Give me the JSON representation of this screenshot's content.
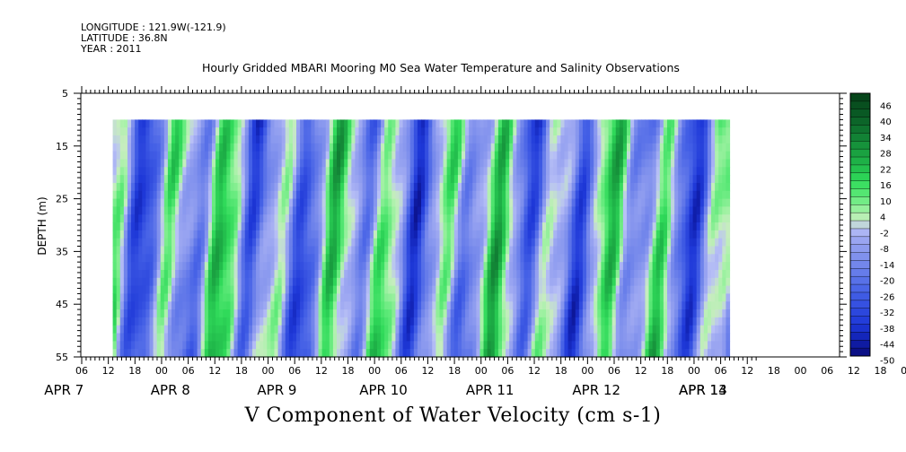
{
  "header": {
    "longitude": "LONGITUDE : 121.9W(-121.9)",
    "latitude": "LATITUDE : 36.8N",
    "year": "YEAR : 2011"
  },
  "chart_data": {
    "type": "heatmap",
    "title": "Hourly Gridded MBARI Mooring M0 Sea Water Temperature and Salinity Observations",
    "variable_label": "V Component of Water Velocity (cm s-1)",
    "ylabel": "DEPTH (m)",
    "ylim": [
      5,
      55
    ],
    "y_inverted": true,
    "y_ticks": [
      5,
      15,
      25,
      35,
      45,
      55
    ],
    "data_depth_range": [
      10,
      55
    ],
    "x_hour_ticks": [
      "06",
      "12",
      "18",
      "00",
      "06",
      "12",
      "18",
      "00",
      "06",
      "12",
      "18",
      "00",
      "06",
      "12",
      "18",
      "00",
      "06",
      "12",
      "18",
      "00",
      "06",
      "12",
      "18",
      "00",
      "06",
      "12",
      "18",
      "00",
      "06",
      "12",
      "18",
      "00",
      "06"
    ],
    "x_day_labels": [
      "APR  7",
      "APR  8",
      "APR  9",
      "APR 10",
      "APR 11",
      "APR 12",
      "APR 13",
      "APR 14"
    ],
    "colorbar": {
      "labels": [
        "46",
        "40",
        "34",
        "28",
        "22",
        "16",
        "10",
        "4",
        "-2",
        "-8",
        "-14",
        "-20",
        "-26",
        "-32",
        "-38",
        "-44",
        "-50"
      ],
      "range": [
        -50,
        49
      ],
      "step": 3
    },
    "data_start": "APR 7 13:00",
    "data_end": "APR 14 08:00",
    "colors": {
      "strong_positive": "#0a4d1a",
      "positive": "#33e060",
      "weak_positive": "#a0f0a0",
      "weak_negative": "#b0b8f0",
      "negative": "#6a80e8",
      "strong_negative": "#1a30c8"
    }
  }
}
